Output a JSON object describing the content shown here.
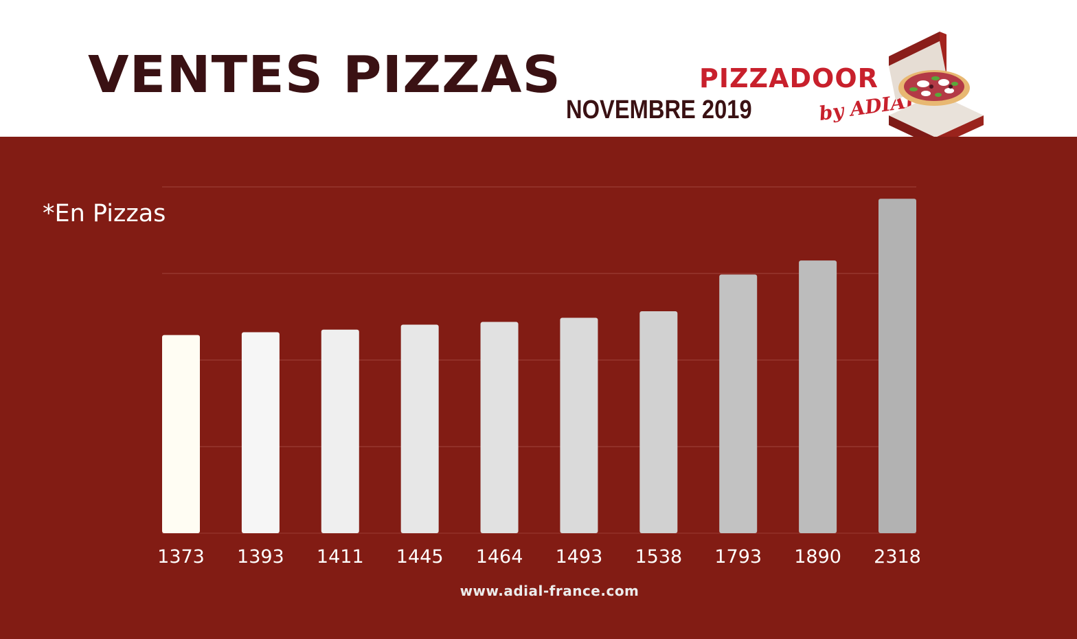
{
  "header": {
    "title": "VENTES PIZZAS",
    "subtitle": "NOVEMBRE 2019",
    "logo": {
      "brand_text": "PIZZADOOR",
      "sub_text": "by ADIAL",
      "icon": "pizza-box-icon",
      "brand_color": "#c8202c"
    }
  },
  "unit_note": "*En Pizzas",
  "footer": {
    "url": "www.adial-france.com"
  },
  "colors": {
    "background_panel": "#821c14",
    "title": "#3a1113",
    "bars": [
      "#fffdf3",
      "#f6f6f6",
      "#efefef",
      "#e7e7e7",
      "#e1e1e1",
      "#dadada",
      "#d1d1d1",
      "#c2c2c2",
      "#bcbcbc",
      "#b2b2b2"
    ]
  },
  "chart_data": {
    "type": "bar",
    "categories": [
      "1373",
      "1393",
      "1411",
      "1445",
      "1464",
      "1493",
      "1538",
      "1793",
      "1890",
      "2318"
    ],
    "values": [
      1373,
      1393,
      1411,
      1445,
      1464,
      1493,
      1538,
      1793,
      1890,
      2318
    ],
    "title": "VENTES PIZZAS",
    "subtitle": "NOVEMBRE 2019",
    "xlabel": "",
    "ylabel": "*En Pizzas",
    "ylim": [
      0,
      2400
    ],
    "y_gridlines": [
      0,
      600,
      1200,
      1800,
      2400
    ],
    "grid": true,
    "legend": "none"
  }
}
